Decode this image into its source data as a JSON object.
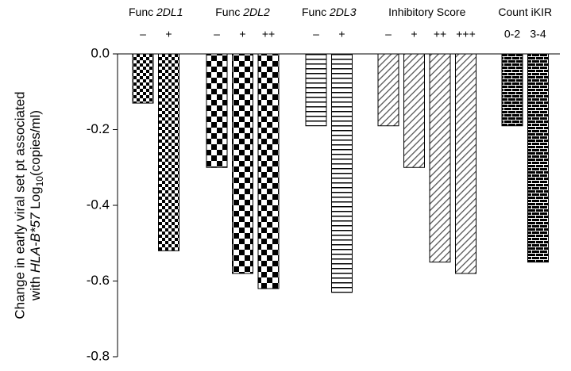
{
  "chart_data": {
    "type": "bar",
    "y_label": {
      "line1": "Change in early viral set pt associated",
      "with": "with ",
      "allele": "HLA-B*57",
      "log": " Log",
      "base": "10",
      "unit": "(copies/ml)"
    },
    "ylim": [
      -0.8,
      0
    ],
    "yticks": [
      {
        "value": 0,
        "label": "0.0"
      },
      -0.2,
      -0.4,
      -0.6,
      -0.8
    ],
    "color": "#000000",
    "groups": [
      {
        "label": "Func ",
        "gene": "2DL1",
        "pattern": "checker-small",
        "categories": [
          "–",
          "+"
        ],
        "values": [
          -0.13,
          -0.52
        ]
      },
      {
        "label": "Func ",
        "gene": "2DL2",
        "pattern": "checker-large",
        "categories": [
          "–",
          "+",
          "++"
        ],
        "values": [
          -0.3,
          -0.58,
          -0.62
        ]
      },
      {
        "label": "Func ",
        "gene": "2DL3",
        "pattern": "hlines",
        "categories": [
          "–",
          "+"
        ],
        "values": [
          -0.19,
          -0.63
        ]
      },
      {
        "label": "Inhibitory Score",
        "pattern": "diagonal",
        "categories": [
          "–",
          "+",
          "++",
          "+++"
        ],
        "values": [
          -0.19,
          -0.3,
          -0.55,
          -0.58
        ]
      },
      {
        "label": "Count iKIR",
        "pattern": "brick",
        "categories": [
          "0-2",
          "3-4"
        ],
        "values": [
          -0.19,
          -0.55
        ]
      }
    ]
  }
}
